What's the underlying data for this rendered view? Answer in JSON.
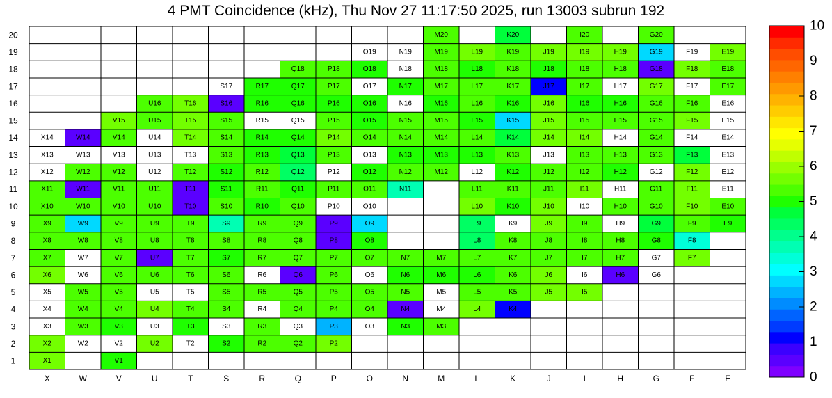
{
  "title": "4 PMT Coincidence (kHz), Thu Nov 27 11:17:50 2025, run 13003 subrun 192",
  "chart_data": {
    "type": "heatmap",
    "title": "4 PMT Coincidence (kHz), Thu Nov 27 11:17:50 2025, run 13003 subrun 192",
    "columns": [
      "X",
      "W",
      "V",
      "U",
      "T",
      "S",
      "R",
      "Q",
      "P",
      "O",
      "N",
      "M",
      "L",
      "K",
      "J",
      "I",
      "H",
      "G",
      "F",
      "E"
    ],
    "rows": [
      20,
      19,
      18,
      17,
      16,
      15,
      14,
      13,
      12,
      11,
      10,
      9,
      8,
      7,
      6,
      5,
      4,
      3,
      2,
      1
    ],
    "zlim": [
      0,
      10
    ],
    "scale_ticks": [
      "10",
      "9",
      "8",
      "7",
      "6",
      "5",
      "4",
      "3",
      "2",
      "1",
      "0"
    ],
    "palette": [
      "#7f00ff",
      "#5a00ff",
      "#3b00ff",
      "#0000ff",
      "#003bff",
      "#0063ff",
      "#008cff",
      "#00b3ff",
      "#00d9ff",
      "#00ffff",
      "#00ffd9",
      "#00ffb3",
      "#00ff8c",
      "#00ff63",
      "#00ff3b",
      "#1fff00",
      "#4cff00",
      "#73ff00",
      "#99ff00",
      "#c0ff00",
      "#e6ff00",
      "#ffff00",
      "#ffe600",
      "#ffcc00",
      "#ffb300",
      "#ff9900",
      "#ff8000",
      "#ff6600",
      "#ff4d00",
      "#ff2a00",
      "#ff0000"
    ],
    "grid": [
      [
        null,
        null,
        null,
        null,
        null,
        null,
        null,
        null,
        null,
        null,
        null,
        5.3,
        null,
        4.6,
        null,
        5.3,
        null,
        5.4,
        null,
        null
      ],
      [
        null,
        null,
        null,
        null,
        null,
        null,
        null,
        null,
        null,
        "O19",
        "N19",
        5.2,
        5.6,
        5.4,
        5.6,
        5.5,
        5.5,
        2.8,
        "F19",
        5.5
      ],
      [
        null,
        null,
        null,
        null,
        null,
        null,
        null,
        5.4,
        5.2,
        4.9,
        "N18",
        5.2,
        5.1,
        5.2,
        5.1,
        5.2,
        5.3,
        0.5,
        5.5,
        5.2
      ],
      [
        null,
        null,
        null,
        null,
        null,
        "S17",
        5.0,
        4.9,
        5.3,
        "O17",
        5.0,
        5.2,
        5.2,
        5.4,
        1.0,
        5.3,
        "H17",
        5.6,
        "F17",
        5.4
      ],
      [
        null,
        null,
        null,
        5.4,
        5.7,
        0.6,
        5.0,
        5.1,
        5.0,
        5.1,
        "N16",
        5.1,
        5.2,
        5.1,
        5.5,
        5.1,
        5.1,
        5.2,
        5.2,
        "E16"
      ],
      [
        null,
        null,
        5.6,
        5.4,
        5.5,
        5.4,
        "R15",
        "Q15",
        5.3,
        5.1,
        5.2,
        5.2,
        5.1,
        2.6,
        5.6,
        5.3,
        5.2,
        5.2,
        5.7,
        "E15"
      ],
      [
        "X14",
        0.5,
        5.4,
        "U14",
        5.6,
        5.2,
        5.0,
        4.9,
        5.5,
        5.3,
        5.3,
        5.4,
        5.2,
        4.6,
        5.7,
        5.5,
        "H14",
        5.3,
        "F14",
        "E14"
      ],
      [
        "X13",
        "W13",
        "V13",
        "U13",
        "T13",
        5.3,
        5.1,
        4.7,
        5.3,
        "O13",
        5.1,
        5.1,
        5.1,
        5.2,
        "J13",
        5.3,
        5.3,
        5.2,
        4.8,
        "E13"
      ],
      [
        "X12",
        5.4,
        5.4,
        "U12",
        5.2,
        5.0,
        5.2,
        4.3,
        "P12",
        5.1,
        5.2,
        5.3,
        "L12",
        5.1,
        5.3,
        5.3,
        5.1,
        "G12",
        5.6,
        "E12"
      ],
      [
        5.3,
        0.6,
        5.3,
        5.2,
        0.5,
        5.0,
        5.4,
        5.1,
        5.4,
        5.3,
        3.6,
        null,
        5.4,
        5.2,
        5.3,
        5.5,
        "H11",
        5.3,
        5.6,
        "E11"
      ],
      [
        5.2,
        5.3,
        5.2,
        5.2,
        0.5,
        5.2,
        4.9,
        5.3,
        "P10",
        "O10",
        null,
        null,
        5.5,
        5.1,
        5.6,
        "I10",
        5.3,
        5.3,
        5.5,
        5.4
      ],
      [
        5.3,
        2.6,
        5.3,
        5.4,
        5.3,
        3.7,
        5.2,
        5.3,
        0.5,
        2.6,
        null,
        null,
        4.4,
        "K9",
        5.6,
        5.3,
        "H9",
        4.6,
        5.4,
        5.1
      ],
      [
        5.3,
        5.3,
        5.3,
        5.3,
        5.4,
        5.3,
        5.4,
        5.3,
        0.5,
        5.1,
        null,
        null,
        4.2,
        5.2,
        5.4,
        5.3,
        5.2,
        5.1,
        3.4,
        null
      ],
      [
        5.3,
        "W7",
        5.4,
        0.6,
        5.2,
        5.1,
        5.2,
        5.2,
        5.4,
        5.2,
        5.2,
        5.4,
        5.2,
        5.2,
        5.4,
        5.3,
        5.4,
        "G7",
        5.6,
        null
      ],
      [
        5.6,
        "W6",
        5.3,
        5.2,
        5.2,
        5.2,
        "R6",
        0.6,
        5.3,
        "O6",
        5.1,
        5.1,
        5.1,
        5.3,
        5.5,
        "I6",
        0.6,
        "G6",
        null,
        null
      ],
      [
        "X5",
        5.4,
        5.4,
        "U5",
        "T5",
        5.2,
        5.3,
        5.4,
        5.4,
        5.3,
        5.2,
        "M5",
        5.4,
        5.4,
        5.6,
        5.6,
        null,
        null,
        null,
        null
      ],
      [
        "X4",
        5.4,
        5.4,
        5.5,
        5.3,
        5.4,
        "R4",
        5.3,
        5.3,
        5.4,
        0.6,
        "M4",
        5.6,
        1.0,
        null,
        null,
        null,
        null,
        null,
        null
      ],
      [
        "X3",
        5.3,
        5.0,
        "U3",
        5.1,
        "S3",
        5.3,
        "Q3",
        2.3,
        "O3",
        5.1,
        5.3,
        null,
        null,
        null,
        null,
        null,
        null,
        null,
        null
      ],
      [
        5.6,
        "W2",
        "V2",
        5.7,
        "T2",
        4.9,
        5.3,
        5.3,
        5.5,
        null,
        null,
        null,
        null,
        null,
        null,
        null,
        null,
        null,
        null,
        null
      ],
      [
        5.5,
        null,
        5.1,
        null,
        null,
        null,
        null,
        null,
        null,
        null,
        null,
        null,
        null,
        null,
        null,
        null,
        null,
        null,
        null,
        null
      ]
    ]
  }
}
